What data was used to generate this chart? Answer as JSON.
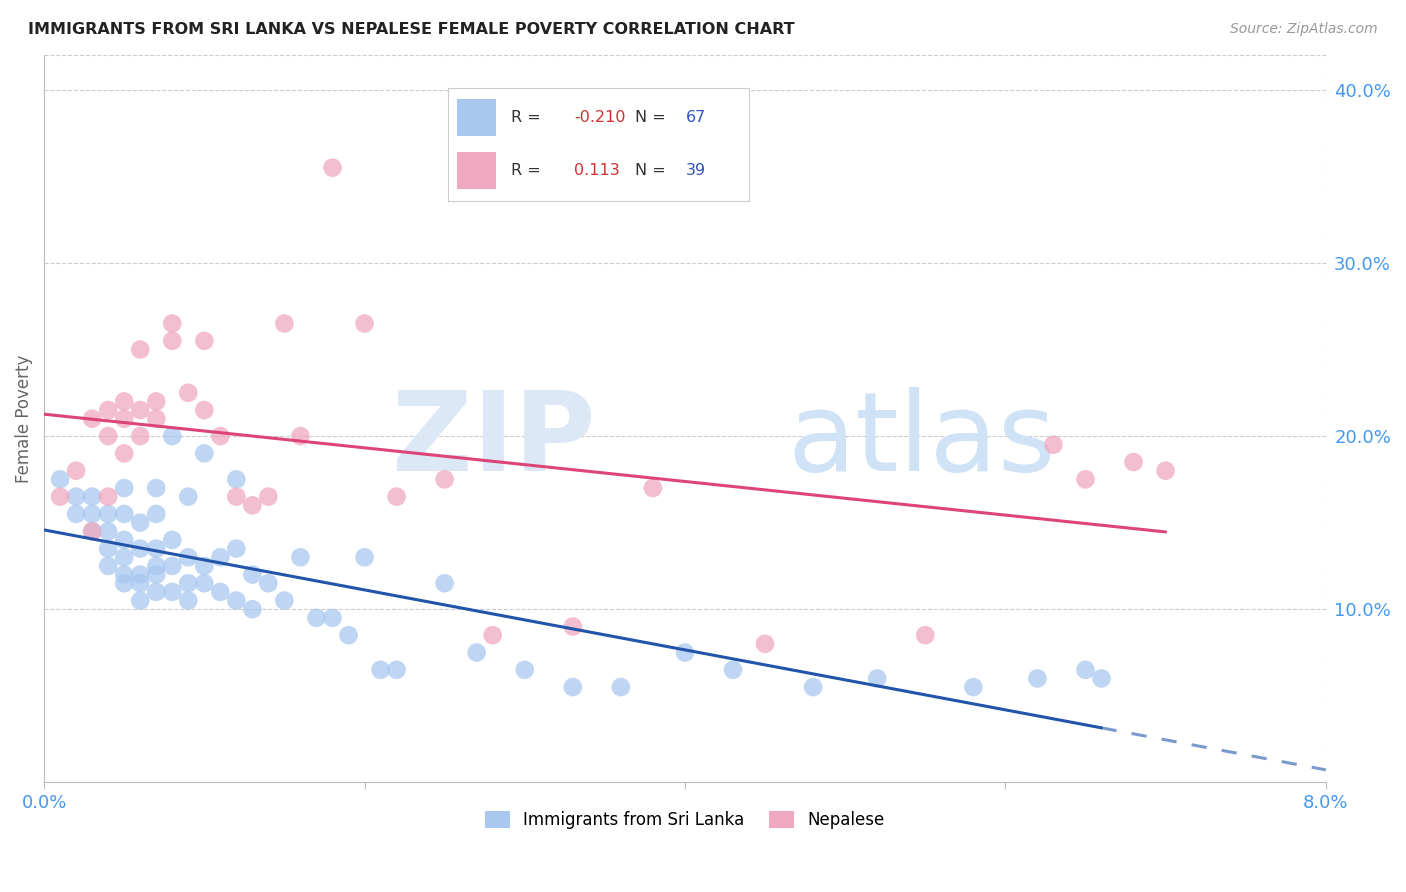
{
  "title": "IMMIGRANTS FROM SRI LANKA VS NEPALESE FEMALE POVERTY CORRELATION CHART",
  "source": "Source: ZipAtlas.com",
  "ylabel_label": "Female Poverty",
  "xlim": [
    0.0,
    0.08
  ],
  "ylim": [
    0.0,
    0.42
  ],
  "yticks": [
    0.1,
    0.2,
    0.3,
    0.4
  ],
  "ytick_labels": [
    "10.0%",
    "20.0%",
    "30.0%",
    "40.0%"
  ],
  "xticks": [
    0.0,
    0.02,
    0.04,
    0.06,
    0.08
  ],
  "xtick_labels": [
    "0.0%",
    "",
    "",
    "",
    "8.0%"
  ],
  "color_sri_lanka": "#a8c8f0",
  "color_nepalese": "#f0a8c0",
  "color_sri_lanka_line": "#2255aa",
  "color_nepalese_line": "#dd4477",
  "color_axis_labels": "#4499ee",
  "sri_lanka_x": [
    0.001,
    0.002,
    0.002,
    0.003,
    0.003,
    0.003,
    0.004,
    0.004,
    0.004,
    0.004,
    0.005,
    0.005,
    0.005,
    0.005,
    0.005,
    0.005,
    0.006,
    0.006,
    0.006,
    0.006,
    0.006,
    0.007,
    0.007,
    0.007,
    0.007,
    0.007,
    0.007,
    0.008,
    0.008,
    0.008,
    0.008,
    0.009,
    0.009,
    0.009,
    0.009,
    0.01,
    0.01,
    0.01,
    0.011,
    0.011,
    0.012,
    0.012,
    0.012,
    0.013,
    0.013,
    0.014,
    0.015,
    0.016,
    0.017,
    0.018,
    0.019,
    0.02,
    0.021,
    0.022,
    0.025,
    0.027,
    0.03,
    0.033,
    0.036,
    0.04,
    0.043,
    0.048,
    0.052,
    0.058,
    0.062,
    0.065,
    0.066
  ],
  "sri_lanka_y": [
    0.175,
    0.155,
    0.165,
    0.145,
    0.155,
    0.165,
    0.125,
    0.135,
    0.145,
    0.155,
    0.115,
    0.12,
    0.13,
    0.14,
    0.155,
    0.17,
    0.105,
    0.115,
    0.12,
    0.135,
    0.15,
    0.11,
    0.12,
    0.125,
    0.135,
    0.155,
    0.17,
    0.11,
    0.125,
    0.14,
    0.2,
    0.105,
    0.115,
    0.13,
    0.165,
    0.115,
    0.125,
    0.19,
    0.11,
    0.13,
    0.105,
    0.135,
    0.175,
    0.1,
    0.12,
    0.115,
    0.105,
    0.13,
    0.095,
    0.095,
    0.085,
    0.13,
    0.065,
    0.065,
    0.115,
    0.075,
    0.065,
    0.055,
    0.055,
    0.075,
    0.065,
    0.055,
    0.06,
    0.055,
    0.06,
    0.065,
    0.06
  ],
  "nepalese_x": [
    0.001,
    0.002,
    0.003,
    0.003,
    0.004,
    0.004,
    0.004,
    0.005,
    0.005,
    0.005,
    0.006,
    0.006,
    0.006,
    0.007,
    0.007,
    0.008,
    0.008,
    0.009,
    0.01,
    0.01,
    0.011,
    0.012,
    0.013,
    0.014,
    0.015,
    0.016,
    0.018,
    0.02,
    0.022,
    0.025,
    0.028,
    0.033,
    0.038,
    0.045,
    0.055,
    0.063,
    0.065,
    0.068,
    0.07
  ],
  "nepalese_y": [
    0.165,
    0.18,
    0.145,
    0.21,
    0.2,
    0.215,
    0.165,
    0.19,
    0.21,
    0.22,
    0.2,
    0.215,
    0.25,
    0.21,
    0.22,
    0.255,
    0.265,
    0.225,
    0.215,
    0.255,
    0.2,
    0.165,
    0.16,
    0.165,
    0.265,
    0.2,
    0.355,
    0.265,
    0.165,
    0.175,
    0.085,
    0.09,
    0.17,
    0.08,
    0.085,
    0.195,
    0.175,
    0.185,
    0.18
  ]
}
